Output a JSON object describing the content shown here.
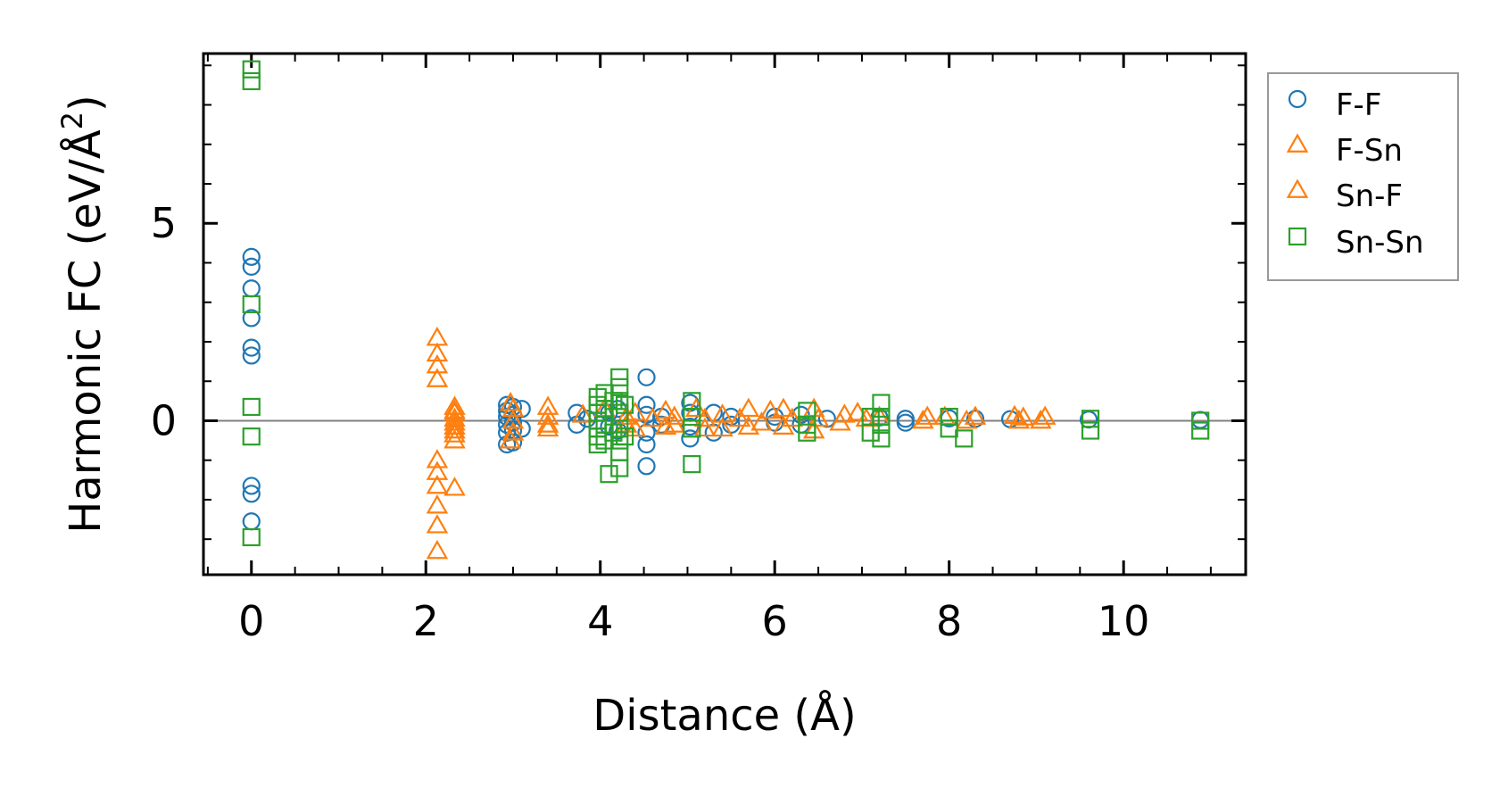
{
  "chart_data": {
    "type": "scatter",
    "xlabel": "Distance (Å)",
    "ylabel_main": "Harmonic FC (eV/Å",
    "ylabel_sup": "2",
    "ylabel_close": ")",
    "xlim": [
      -0.55,
      11.4
    ],
    "ylim": [
      -3.9,
      9.3
    ],
    "x_ticks": [
      0,
      2,
      4,
      6,
      8,
      10
    ],
    "x_tick_labels": [
      "0",
      "2",
      "4",
      "6",
      "8",
      "10"
    ],
    "y_ticks": [
      0,
      5
    ],
    "y_tick_labels": [
      "0",
      "5"
    ],
    "x_minor_step": 0.5,
    "y_minor_step": 1,
    "zero_line": true,
    "grid": false,
    "legend_position": "outside-right-top",
    "series": [
      {
        "name": "F-F",
        "marker": "circle",
        "color": "#1f77b4",
        "points": [
          [
            0,
            4.15
          ],
          [
            0,
            3.9
          ],
          [
            0,
            3.35
          ],
          [
            0,
            2.6
          ],
          [
            0,
            1.85
          ],
          [
            0,
            1.65
          ],
          [
            0,
            -1.65
          ],
          [
            0,
            -1.85
          ],
          [
            0,
            -2.55
          ],
          [
            2.93,
            0.4
          ],
          [
            2.93,
            0.25
          ],
          [
            2.93,
            0.1
          ],
          [
            2.93,
            -0.1
          ],
          [
            2.93,
            -0.3
          ],
          [
            2.93,
            -0.6
          ],
          [
            3.0,
            0.35
          ],
          [
            3.0,
            0.15
          ],
          [
            3.0,
            -0.05
          ],
          [
            3.0,
            -0.25
          ],
          [
            3.0,
            -0.55
          ],
          [
            3.1,
            0.3
          ],
          [
            3.1,
            -0.2
          ],
          [
            3.73,
            0.2
          ],
          [
            3.73,
            -0.1
          ],
          [
            3.85,
            0.05
          ],
          [
            4.1,
            0.2
          ],
          [
            4.1,
            -0.15
          ],
          [
            4.2,
            0.3
          ],
          [
            4.2,
            -0.25
          ],
          [
            4.53,
            1.1
          ],
          [
            4.53,
            0.4
          ],
          [
            4.53,
            0.15
          ],
          [
            4.53,
            -0.3
          ],
          [
            4.53,
            -0.6
          ],
          [
            4.53,
            -1.15
          ],
          [
            4.7,
            0.1
          ],
          [
            4.7,
            -0.1
          ],
          [
            5.03,
            0.45
          ],
          [
            5.03,
            0.2
          ],
          [
            5.03,
            -0.15
          ],
          [
            5.03,
            -0.45
          ],
          [
            5.3,
            0.2
          ],
          [
            5.3,
            -0.3
          ],
          [
            5.5,
            0.1
          ],
          [
            5.5,
            -0.1
          ],
          [
            6.0,
            0.1
          ],
          [
            6.0,
            -0.05
          ],
          [
            6.3,
            0.15
          ],
          [
            6.3,
            -0.1
          ],
          [
            6.6,
            0.05
          ],
          [
            7.2,
            0.08
          ],
          [
            7.5,
            0.05
          ],
          [
            7.5,
            -0.05
          ],
          [
            8.0,
            0.06
          ],
          [
            8.3,
            0.05
          ],
          [
            8.7,
            0.04
          ],
          [
            9.6,
            0.03
          ],
          [
            10.88,
            0.02
          ]
        ]
      },
      {
        "name": "F-Sn",
        "marker": "triangle",
        "color": "#ff7f0e",
        "points": [
          [
            2.13,
            2.1
          ],
          [
            2.13,
            1.7
          ],
          [
            2.13,
            1.4
          ],
          [
            2.13,
            1.05
          ],
          [
            2.13,
            -1.0
          ],
          [
            2.13,
            -1.3
          ],
          [
            2.13,
            -1.65
          ],
          [
            2.13,
            -2.15
          ],
          [
            2.13,
            -2.65
          ],
          [
            2.13,
            -3.3
          ],
          [
            2.33,
            -1.7
          ],
          [
            2.33,
            0.35
          ],
          [
            2.33,
            0.2
          ],
          [
            2.33,
            0.05
          ],
          [
            2.33,
            -0.15
          ],
          [
            2.33,
            -0.35
          ],
          [
            2.97,
            0.45
          ],
          [
            2.97,
            -0.5
          ],
          [
            3.4,
            0.35
          ],
          [
            3.4,
            -0.2
          ],
          [
            4.05,
            0.3
          ],
          [
            4.4,
            0.2
          ],
          [
            4.4,
            -0.2
          ],
          [
            4.75,
            0.25
          ],
          [
            4.75,
            -0.15
          ],
          [
            5.1,
            0.3
          ],
          [
            5.4,
            0.15
          ],
          [
            5.4,
            -0.2
          ],
          [
            5.7,
            0.3
          ],
          [
            5.7,
            -0.15
          ],
          [
            5.95,
            0.25
          ],
          [
            6.1,
            0.3
          ],
          [
            6.1,
            -0.15
          ],
          [
            6.45,
            0.3
          ],
          [
            6.45,
            -0.25
          ],
          [
            6.8,
            0.15
          ],
          [
            6.95,
            0.2
          ],
          [
            7.2,
            0.1
          ],
          [
            7.75,
            0.1
          ],
          [
            7.95,
            0.1
          ],
          [
            8.3,
            0.1
          ],
          [
            8.75,
            0.12
          ],
          [
            8.85,
            0.08
          ],
          [
            9.1,
            0.1
          ]
        ]
      },
      {
        "name": "Sn-F",
        "marker": "triangle",
        "color": "#ff7f0e",
        "points": [
          [
            2.33,
            0.25
          ],
          [
            2.33,
            -0.05
          ],
          [
            2.33,
            -0.25
          ],
          [
            2.33,
            -0.5
          ],
          [
            3.0,
            0.3
          ],
          [
            3.0,
            0.0
          ],
          [
            3.0,
            -0.3
          ],
          [
            3.4,
            0.1
          ],
          [
            3.4,
            -0.1
          ],
          [
            3.8,
            0.15
          ],
          [
            4.3,
            0.1
          ],
          [
            4.3,
            -0.1
          ],
          [
            4.6,
            0.05
          ],
          [
            4.85,
            0.1
          ],
          [
            4.85,
            -0.1
          ],
          [
            5.2,
            0.05
          ],
          [
            5.2,
            -0.2
          ],
          [
            5.6,
            0.05
          ],
          [
            5.85,
            -0.05
          ],
          [
            6.2,
            0.05
          ],
          [
            6.5,
            0.05
          ],
          [
            6.75,
            -0.05
          ],
          [
            7.05,
            0.05
          ],
          [
            7.7,
            0.0
          ],
          [
            8.2,
            0.0
          ],
          [
            8.8,
            0.0
          ],
          [
            9.05,
            0.0
          ]
        ]
      },
      {
        "name": "Sn-Sn",
        "marker": "square",
        "color": "#2ca02c",
        "points": [
          [
            0,
            8.9
          ],
          [
            0,
            8.6
          ],
          [
            0,
            2.95
          ],
          [
            0,
            0.35
          ],
          [
            0,
            -0.4
          ],
          [
            0,
            -2.95
          ],
          [
            3.97,
            0.6
          ],
          [
            3.97,
            0.4
          ],
          [
            3.97,
            0.2
          ],
          [
            3.97,
            0.0
          ],
          [
            3.97,
            -0.2
          ],
          [
            3.97,
            -0.4
          ],
          [
            3.97,
            -0.6
          ],
          [
            4.05,
            0.7
          ],
          [
            4.05,
            0.3
          ],
          [
            4.05,
            -0.1
          ],
          [
            4.05,
            -0.5
          ],
          [
            4.1,
            -1.35
          ],
          [
            4.15,
            0.5
          ],
          [
            4.15,
            -0.3
          ],
          [
            4.22,
            1.1
          ],
          [
            4.22,
            0.85
          ],
          [
            4.22,
            0.5
          ],
          [
            4.22,
            0.2
          ],
          [
            4.22,
            -0.2
          ],
          [
            4.22,
            -0.5
          ],
          [
            4.22,
            -0.8
          ],
          [
            4.22,
            -1.2
          ],
          [
            4.28,
            0.4
          ],
          [
            4.28,
            -0.4
          ],
          [
            5.05,
            0.5
          ],
          [
            5.05,
            0.1
          ],
          [
            5.05,
            -0.2
          ],
          [
            5.05,
            -1.1
          ],
          [
            6.37,
            0.25
          ],
          [
            6.37,
            -0.1
          ],
          [
            6.37,
            -0.3
          ],
          [
            7.1,
            0.1
          ],
          [
            7.1,
            -0.3
          ],
          [
            7.22,
            0.45
          ],
          [
            7.22,
            0.1
          ],
          [
            7.22,
            -0.1
          ],
          [
            7.22,
            -0.45
          ],
          [
            8.0,
            0.1
          ],
          [
            8.0,
            -0.2
          ],
          [
            8.17,
            -0.45
          ],
          [
            9.62,
            0.05
          ],
          [
            9.62,
            -0.25
          ],
          [
            10.88,
            0.0
          ],
          [
            10.88,
            -0.25
          ]
        ]
      }
    ]
  },
  "legend": {
    "items": [
      {
        "label": "F-F",
        "marker": "circle",
        "color": "#1f77b4"
      },
      {
        "label": "F-Sn",
        "marker": "triangle",
        "color": "#ff7f0e"
      },
      {
        "label": "Sn-F",
        "marker": "triangle",
        "color": "#ff7f0e"
      },
      {
        "label": "Sn-Sn",
        "marker": "square",
        "color": "#2ca02c"
      }
    ]
  }
}
